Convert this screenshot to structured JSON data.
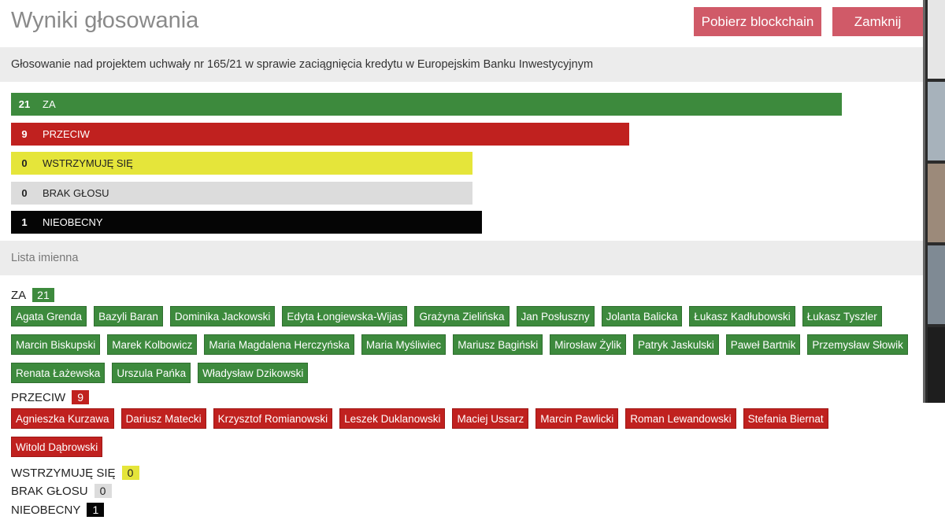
{
  "header": {
    "title": "Wyniki głosowania",
    "download_label": "Pobierz blockchain",
    "close_label": "Zamknij"
  },
  "subject": "Głosowanie nad projektem uchwały nr 165/21 w sprawie zaciągnięcia kredytu w Europejskim Banku Inwestycyjnym",
  "results": [
    {
      "count": "21",
      "label": "ZA",
      "fraction": 0.9,
      "color": "#3d8a3d",
      "text_color": "#ffffff"
    },
    {
      "count": "9",
      "label": "PRZECIW",
      "fraction": 0.67,
      "color": "#c0211f",
      "text_color": "#ffffff"
    },
    {
      "count": "0",
      "label": "WSTRZYMUJĘ SIĘ",
      "fraction": 0.5,
      "color": "#e5e53a",
      "text_color": "#222222"
    },
    {
      "count": "0",
      "label": "BRAK GŁOSU",
      "fraction": 0.5,
      "color": "#dcdcdc",
      "text_color": "#222222"
    },
    {
      "count": "1",
      "label": "NIEOBECNY",
      "fraction": 0.51,
      "color": "#050505",
      "text_color": "#ffffff"
    }
  ],
  "list_title": "Lista imienna",
  "groups": {
    "za": {
      "label": "ZA",
      "count": "21",
      "color": "#3d8a3d",
      "names": [
        "Agata Grenda",
        "Bazyli Baran",
        "Dominika Jackowski",
        "Edyta Łongiewska-Wijas",
        "Grażyna Zielińska",
        "Jan Posłuszny",
        "Jolanta Balicka",
        "Łukasz Kadłubowski",
        "Łukasz Tyszler",
        "Marcin Biskupski",
        "Marek Kolbowicz",
        "Maria Magdalena Herczyńska",
        "Maria Myśliwiec",
        "Mariusz Bagiński",
        "Mirosław Żylik",
        "Patryk Jaskulski",
        "Paweł Bartnik",
        "Przemysław Słowik",
        "Renata Łażewska",
        "Urszula Pańka",
        "Władysław Dzikowski"
      ]
    },
    "przeciw": {
      "label": "PRZECIW",
      "count": "9",
      "color": "#c0211f",
      "names": [
        "Agnieszka Kurzawa",
        "Dariusz Matecki",
        "Krzysztof Romianowski",
        "Leszek Duklanowski",
        "Maciej Ussarz",
        "Marcin Pawlicki",
        "Roman Lewandowski",
        "Stefania Biernat",
        "Witold Dąbrowski"
      ]
    },
    "wstrzymuje": {
      "label": "WSTRZYMUJĘ SIĘ",
      "count": "0",
      "color": "#e5e53a"
    },
    "brak": {
      "label": "BRAK GŁOSU",
      "count": "0",
      "color": "#dcdcdc"
    },
    "nieobecny": {
      "label": "NIEOBECNY",
      "count": "1",
      "color": "#050505"
    }
  }
}
